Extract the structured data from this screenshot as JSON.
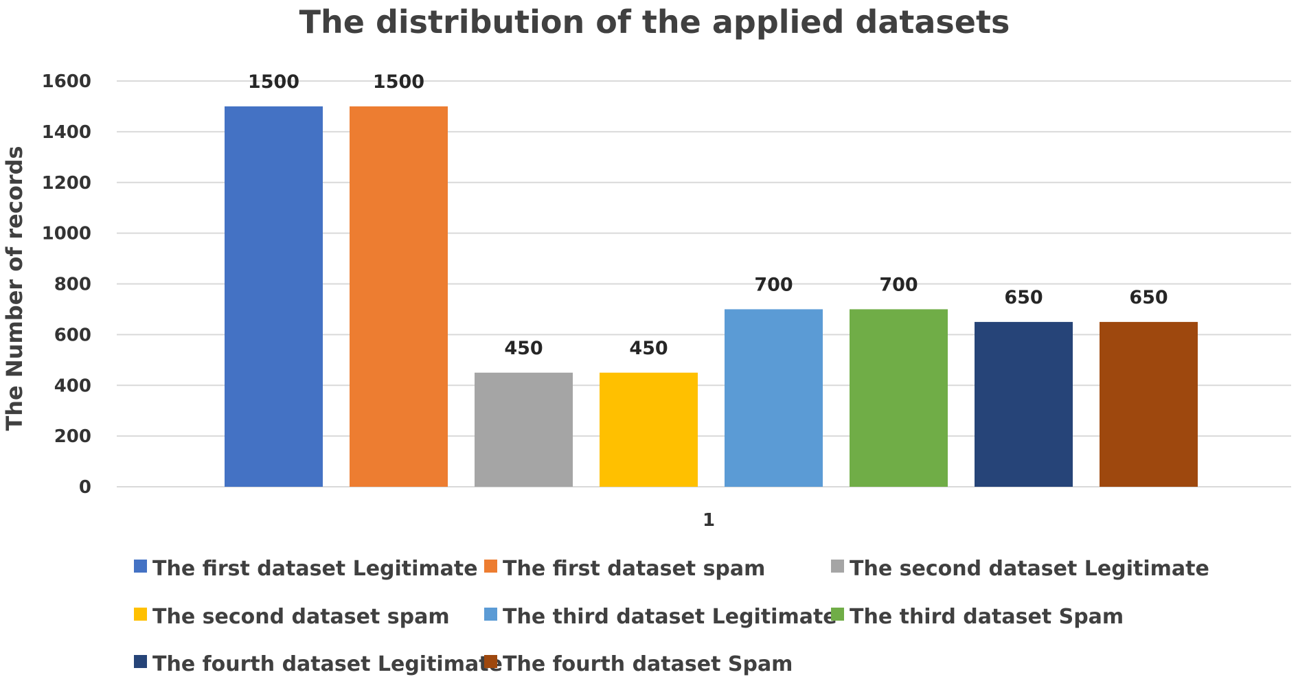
{
  "chart_data": {
    "type": "bar",
    "title": "The distribution of the applied datasets",
    "xlabel": "",
    "ylabel": "The Number of records",
    "categories": [
      "1"
    ],
    "ylim": [
      0,
      1600
    ],
    "yticks": [
      0,
      200,
      400,
      600,
      800,
      1000,
      1200,
      1400,
      1600
    ],
    "grid": true,
    "legend_position": "bottom",
    "series": [
      {
        "name": "The first dataset Legitimate",
        "values": [
          1500
        ],
        "color": "#4472C4"
      },
      {
        "name": "The first dataset spam",
        "values": [
          1500
        ],
        "color": "#ED7D31"
      },
      {
        "name": "The second dataset Legitimate",
        "values": [
          450
        ],
        "color": "#A5A5A5"
      },
      {
        "name": "The second dataset spam",
        "values": [
          450
        ],
        "color": "#FFC000"
      },
      {
        "name": "The third dataset Legitimate",
        "values": [
          700
        ],
        "color": "#5B9BD5"
      },
      {
        "name": "The third dataset Spam",
        "values": [
          700
        ],
        "color": "#70AD47"
      },
      {
        "name": "The fourth dataset Legitimate",
        "values": [
          650
        ],
        "color": "#264478"
      },
      {
        "name": "The fourth dataset Spam",
        "values": [
          650
        ],
        "color": "#9E480E"
      }
    ]
  }
}
